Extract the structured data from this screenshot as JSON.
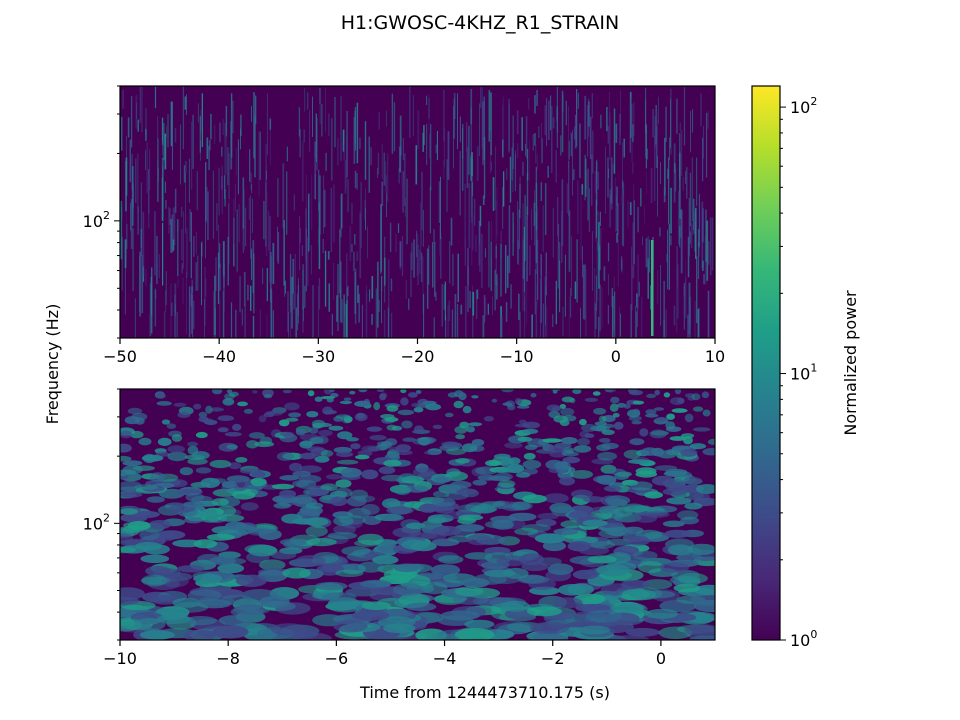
{
  "title": "H1:GWOSC-4KHZ_R1_STRAIN",
  "shared_ylabel": "Frequency (Hz)",
  "colorbar": {
    "label": "Normalized power",
    "scale": "log",
    "range": [
      1,
      120
    ],
    "tick_labels": [
      {
        "base": "10",
        "exp": "0",
        "value": 1
      },
      {
        "base": "10",
        "exp": "1",
        "value": 10
      },
      {
        "base": "10",
        "exp": "2",
        "value": 100
      }
    ],
    "colormap": "viridis",
    "colors": [
      "#440154",
      "#482878",
      "#3e4a89",
      "#31688e",
      "#26828e",
      "#1f9e89",
      "#35b779",
      "#6ece58",
      "#b5de2b",
      "#fde725"
    ]
  },
  "chart_data": [
    {
      "type": "heatmap",
      "title": "",
      "xlabel": "",
      "ylabel": "Frequency (Hz)",
      "xlim": [
        -50,
        10
      ],
      "ylim": [
        30,
        400
      ],
      "yscale": "log",
      "x_ticks": [
        "−50",
        "−40",
        "−30",
        "−20",
        "−10",
        "0",
        "10"
      ],
      "x_tick_values": [
        -50,
        -40,
        -30,
        -20,
        -10,
        0,
        10
      ],
      "y_tick_labels": [
        {
          "base": "10",
          "exp": "2",
          "value": 100
        }
      ],
      "texture": "fine vertical streaks",
      "colorscale": "viridis",
      "grid": false
    },
    {
      "type": "heatmap",
      "title": "",
      "xlabel": "Time from 1244473710.175 (s)",
      "ylabel": "Frequency (Hz)",
      "xlim": [
        -10,
        1
      ],
      "ylim": [
        30,
        400
      ],
      "yscale": "log",
      "x_ticks": [
        "−10",
        "−8",
        "−6",
        "−4",
        "−2",
        "0"
      ],
      "x_tick_values": [
        -10,
        -8,
        -6,
        -4,
        -2,
        0
      ],
      "y_tick_labels": [
        {
          "base": "10",
          "exp": "2",
          "value": 100
        }
      ],
      "texture": "blobs",
      "colorscale": "viridis",
      "grid": false
    }
  ]
}
